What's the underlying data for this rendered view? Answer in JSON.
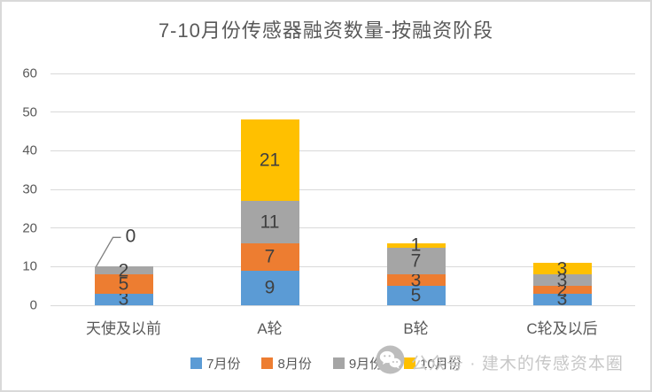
{
  "chart_data": {
    "type": "bar",
    "subtype": "stacked-column",
    "title": "7-10月份传感器融资数量-按融资阶段",
    "categories": [
      "天使及以前",
      "A轮",
      "B轮",
      "C轮及以后"
    ],
    "series": [
      {
        "name": "7月份",
        "color": "#5B9BD5",
        "values": [
          3,
          9,
          5,
          3
        ]
      },
      {
        "name": "8月份",
        "color": "#ED7D31",
        "values": [
          5,
          7,
          3,
          2
        ]
      },
      {
        "name": "9月份",
        "color": "#A5A5A5",
        "values": [
          2,
          11,
          7,
          3
        ]
      },
      {
        "name": "10月份",
        "color": "#FFC000",
        "values": [
          0,
          21,
          1,
          3
        ]
      }
    ],
    "totals": [
      10,
      48,
      16,
      11
    ],
    "xlabel": "",
    "ylabel": "",
    "ylim": [
      0,
      60
    ],
    "yticks": [
      0,
      10,
      20,
      30,
      40,
      50,
      60
    ],
    "grid": true,
    "data_labels": true,
    "legend_position": "bottom",
    "callout": {
      "category": "天使及以前",
      "series": "10月份",
      "value": 0
    }
  },
  "watermark": {
    "icon": "wechat-icon",
    "text": "公众号 · 建木的传感资本圈"
  },
  "colors": {
    "title_text": "#595959",
    "axis_text": "#595959",
    "data_label_text": "#404040",
    "gridline": "#d9d9d9",
    "frame_border": "#d9d9d9",
    "watermark_text": "#c7c7c7",
    "callout_line": "#7f7f7f"
  }
}
